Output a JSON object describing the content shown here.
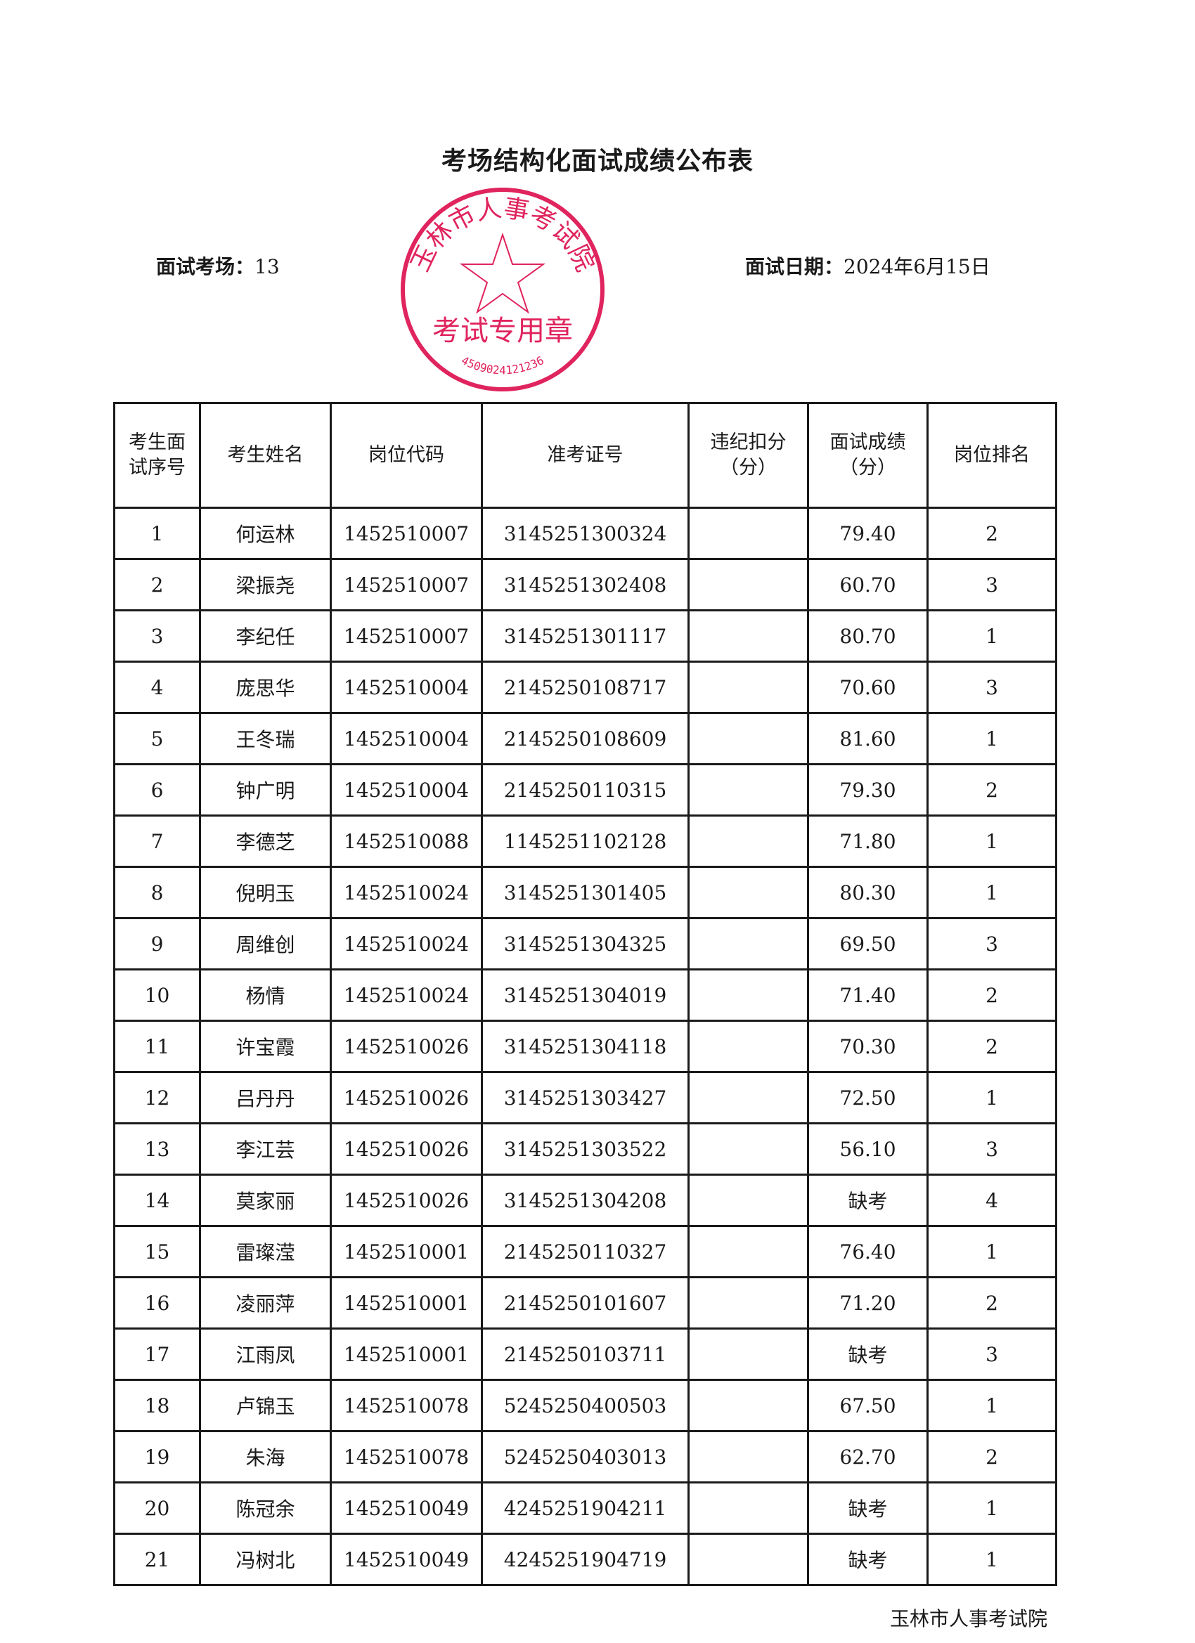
{
  "title": "考场结构化面试成绩公布表",
  "venue": {
    "label": "面试考场：",
    "value": "13"
  },
  "date": {
    "label": "面试日期：",
    "value": "2024年6月15日"
  },
  "table": {
    "headers": [
      [
        "考生面",
        "试序号"
      ],
      [
        "考生姓名"
      ],
      [
        "岗位代码"
      ],
      [
        "准考证号"
      ],
      [
        "违纪扣分",
        "（分）"
      ],
      [
        "面试成绩",
        "（分）"
      ],
      [
        "岗位排名"
      ]
    ],
    "rows": [
      [
        "1",
        "何运林",
        "1452510007",
        "3145251300324",
        "",
        "79.40",
        "2"
      ],
      [
        "2",
        "梁振尧",
        "1452510007",
        "3145251302408",
        "",
        "60.70",
        "3"
      ],
      [
        "3",
        "李纪任",
        "1452510007",
        "3145251301117",
        "",
        "80.70",
        "1"
      ],
      [
        "4",
        "庞思华",
        "1452510004",
        "2145250108717",
        "",
        "70.60",
        "3"
      ],
      [
        "5",
        "王冬瑞",
        "1452510004",
        "2145250108609",
        "",
        "81.60",
        "1"
      ],
      [
        "6",
        "钟广明",
        "1452510004",
        "2145250110315",
        "",
        "79.30",
        "2"
      ],
      [
        "7",
        "李德芝",
        "1452510088",
        "1145251102128",
        "",
        "71.80",
        "1"
      ],
      [
        "8",
        "倪明玉",
        "1452510024",
        "3145251301405",
        "",
        "80.30",
        "1"
      ],
      [
        "9",
        "周维创",
        "1452510024",
        "3145251304325",
        "",
        "69.50",
        "3"
      ],
      [
        "10",
        "杨情",
        "1452510024",
        "3145251304019",
        "",
        "71.40",
        "2"
      ],
      [
        "11",
        "许宝霞",
        "1452510026",
        "3145251304118",
        "",
        "70.30",
        "2"
      ],
      [
        "12",
        "吕丹丹",
        "1452510026",
        "3145251303427",
        "",
        "72.50",
        "1"
      ],
      [
        "13",
        "李江芸",
        "1452510026",
        "3145251303522",
        "",
        "56.10",
        "3"
      ],
      [
        "14",
        "莫家丽",
        "1452510026",
        "3145251304208",
        "",
        "缺考",
        "4"
      ],
      [
        "15",
        "雷璨滢",
        "1452510001",
        "2145250110327",
        "",
        "76.40",
        "1"
      ],
      [
        "16",
        "凌丽萍",
        "1452510001",
        "2145250101607",
        "",
        "71.20",
        "2"
      ],
      [
        "17",
        "江雨凤",
        "1452510001",
        "2145250103711",
        "",
        "缺考",
        "3"
      ],
      [
        "18",
        "卢锦玉",
        "1452510078",
        "5245250400503",
        "",
        "67.50",
        "1"
      ],
      [
        "19",
        "朱海",
        "1452510078",
        "5245250403013",
        "",
        "62.70",
        "2"
      ],
      [
        "20",
        "陈冠余",
        "1452510049",
        "4245251904211",
        "",
        "缺考",
        "1"
      ],
      [
        "21",
        "冯树北",
        "1452510049",
        "4245251904719",
        "",
        "缺考",
        "1"
      ]
    ]
  },
  "footer": "玉林市人事考试院",
  "stamp": {
    "outer_text": "玉林市人事考试院",
    "inner_text": "考试专用章",
    "number": "4509024121236",
    "color": "#e0245e"
  }
}
